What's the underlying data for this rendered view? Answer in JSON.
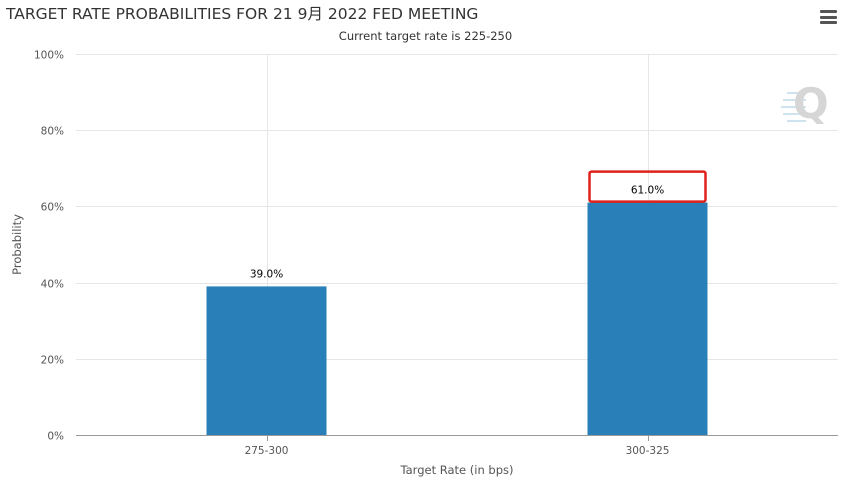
{
  "header": {
    "title": "TARGET RATE PROBABILITIES FOR 21 9月 2022 FED MEETING",
    "subtitle": "Current target rate is 225-250",
    "menu_icon": "hamburger-menu-icon"
  },
  "watermark": {
    "icon": "quikstrike-q-logo-icon",
    "letter": "Q"
  },
  "chart_data": {
    "type": "bar",
    "categories": [
      "275-300",
      "300-325"
    ],
    "values": [
      39.0,
      61.0
    ],
    "data_labels": [
      "39.0%",
      "61.0%"
    ],
    "xlabel": "Target Rate (in bps)",
    "ylabel": "Probability",
    "ylim": [
      0,
      100
    ],
    "yticks": [
      0,
      20,
      40,
      60,
      80,
      100
    ],
    "ytick_labels": [
      "0%",
      "20%",
      "40%",
      "60%",
      "80%",
      "100%"
    ],
    "grid": true,
    "bar_color": "#2980b9",
    "highlighted_category": "300-325",
    "highlight_color": "#e0201b"
  }
}
